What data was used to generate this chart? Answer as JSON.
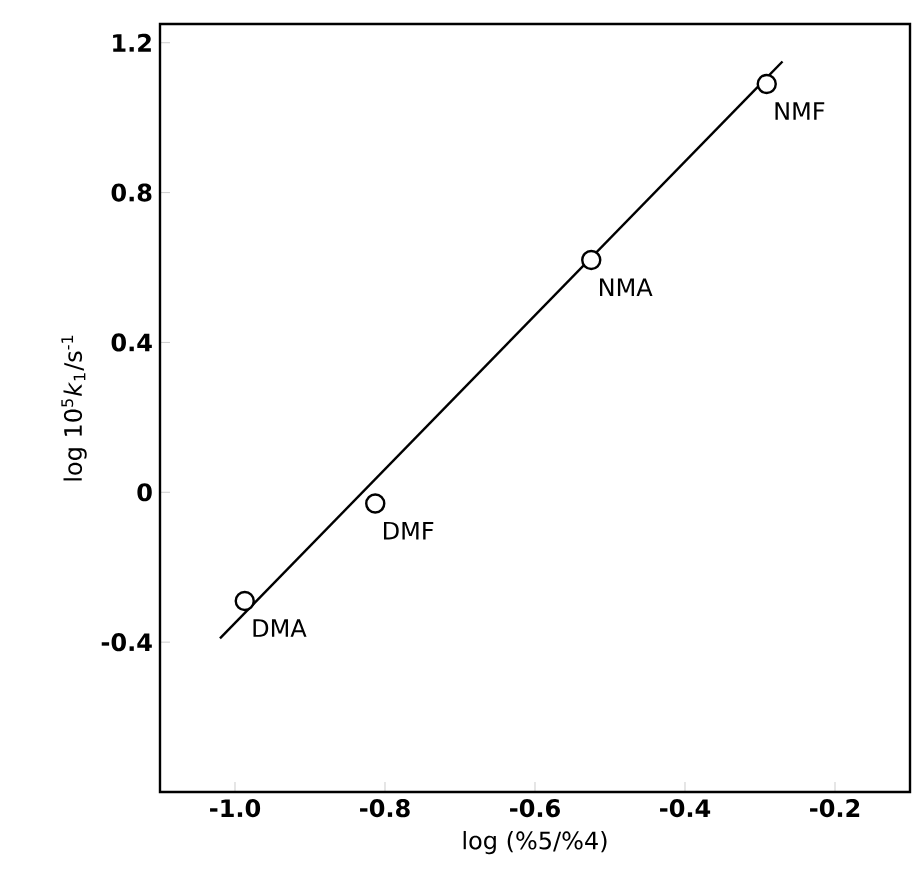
{
  "chart_data": {
    "type": "scatter",
    "xlabel": "log (%5/%4)",
    "ylabel": "log 10$^{5}$*k*$_{1}$/s$^{-1}$",
    "xlim": [
      -1.1,
      -0.1
    ],
    "ylim": [
      -0.8,
      1.25
    ],
    "xticks": [
      {
        "value": -1.0,
        "label": "-1.0"
      },
      -0.8,
      -0.6,
      -0.4,
      -0.2
    ],
    "yticks": [
      -0.4,
      0,
      0.4,
      0.8,
      1.2
    ],
    "marker": "circle",
    "grid": false,
    "series": [
      {
        "color": "#000000",
        "x": [
          -0.987,
          -0.813,
          -0.525,
          -0.291
        ],
        "values": [
          -0.29,
          -0.03,
          0.62,
          1.09
        ]
      },
      {
        "type": "line",
        "marker": "none",
        "color": "#000000",
        "x": [
          -1.02,
          -0.27
        ],
        "values": [
          -0.39,
          1.15
        ]
      }
    ],
    "annotations": [
      {
        "text": "DMA",
        "x": -0.987,
        "y": -0.29
      },
      {
        "text": "DMF",
        "x": -0.813,
        "y": -0.03
      },
      {
        "text": "NMA",
        "x": -0.525,
        "y": 0.62
      },
      {
        "text": "NMF",
        "x": -0.291,
        "y": 1.09
      }
    ]
  }
}
